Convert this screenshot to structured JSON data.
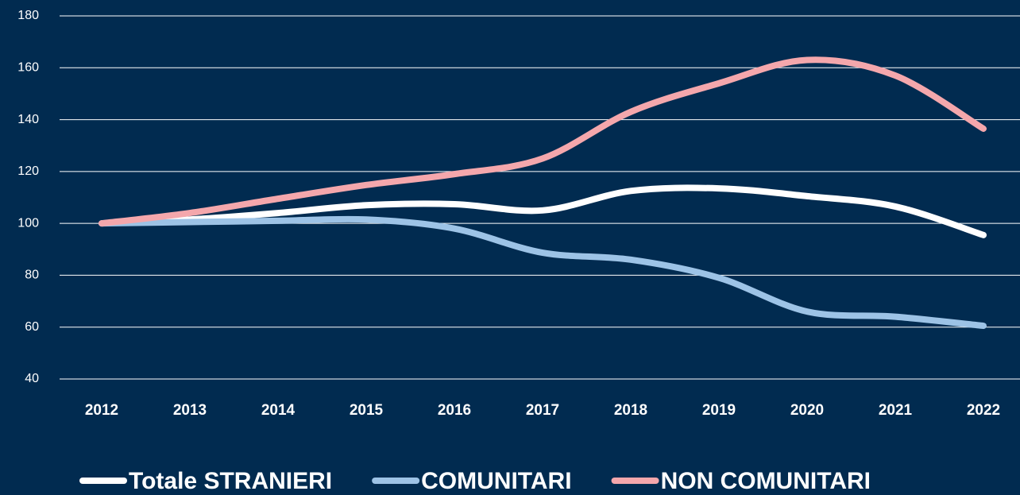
{
  "chart_data": {
    "type": "line",
    "categories": [
      "2012",
      "2013",
      "2014",
      "2015",
      "2016",
      "2017",
      "2018",
      "2019",
      "2020",
      "2021",
      "2022"
    ],
    "series": [
      {
        "name": "Totale STRANIERI",
        "color": "#ffffff",
        "values": [
          100,
          101.5,
          104,
          107,
          107.4,
          105,
          112.5,
          113.5,
          110.5,
          106.5,
          95.5
        ]
      },
      {
        "name": "COMUNITARI",
        "color": "#9dc3e6",
        "values": [
          100,
          100.5,
          101,
          101.5,
          98,
          88.7,
          86,
          79,
          66,
          64,
          60.5
        ]
      },
      {
        "name": "NON COMUNITARI",
        "color": "#f4a7ac",
        "values": [
          100,
          104,
          109.5,
          114.8,
          119,
          125,
          143,
          154,
          163,
          157,
          136.5
        ]
      }
    ],
    "ylim": [
      40,
      180
    ],
    "yticks": [
      40,
      60,
      80,
      100,
      120,
      140,
      160,
      180
    ],
    "grid": true,
    "legend": "bottom"
  }
}
